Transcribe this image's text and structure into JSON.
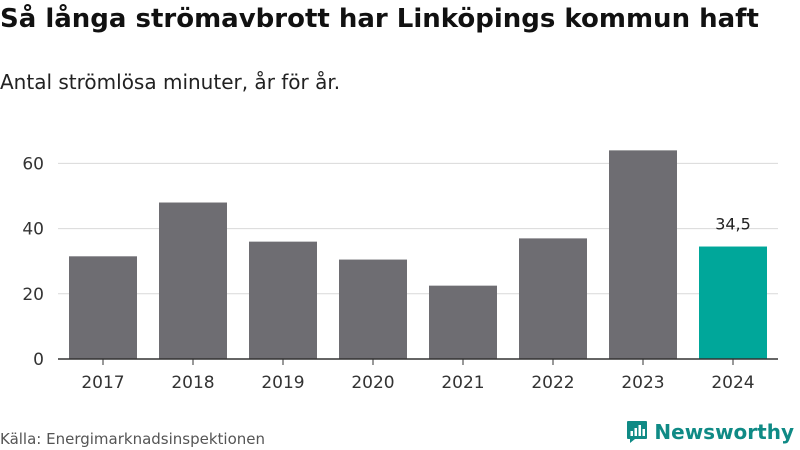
{
  "header": {
    "title": "Så långa strömavbrott har Linköpings kommun haft",
    "subtitle": "Antal strömlösa minuter, år för år."
  },
  "footer": {
    "source": "Källa: Energimarknadsinspektionen",
    "brand": "Newsworthy",
    "brand_icon": "newsworthy-logo-icon"
  },
  "colors": {
    "bar": "#6e6d72",
    "highlight": "#00a79a",
    "brand": "#0f8a85",
    "grid": "#d9d9d9",
    "axis": "#333333"
  },
  "chart_data": {
    "type": "bar",
    "categories": [
      "2017",
      "2018",
      "2019",
      "2020",
      "2021",
      "2022",
      "2023",
      "2024"
    ],
    "values": [
      31.5,
      48,
      36,
      30.5,
      22.5,
      37,
      64,
      34.5
    ],
    "highlight_index": 7,
    "data_labels": [
      {
        "index": 7,
        "text": "34,5"
      }
    ],
    "ylim": [
      0,
      70
    ],
    "yticks": [
      0,
      20,
      40,
      60
    ],
    "grid": true,
    "legend": "none",
    "title": "Så långa strömavbrott har Linköpings kommun haft",
    "subtitle": "Antal strömlösa minuter, år för år.",
    "xlabel": "",
    "ylabel": ""
  }
}
